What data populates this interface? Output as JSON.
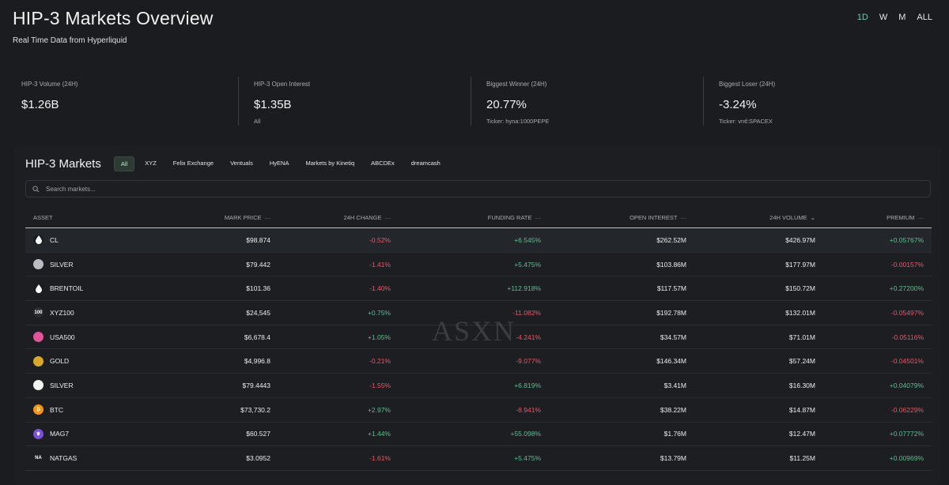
{
  "page": {
    "title": "HIP-3 Markets Overview",
    "subtitle": "Real Time Data from Hyperliquid"
  },
  "timeframes": [
    "1D",
    "W",
    "M",
    "ALL"
  ],
  "active_timeframe": "1D",
  "stats": [
    {
      "label": "HIP-3 Volume (24H)",
      "value": "$1.26B",
      "sub": ""
    },
    {
      "label": "HIP-3 Open Interest",
      "value": "$1.35B",
      "sub": "All"
    },
    {
      "label": "Biggest Winner (24H)",
      "value": "20.77%",
      "sub": "Ticker: hyna:1000PEPE"
    },
    {
      "label": "Biggest Loser (24H)",
      "value": "-3.24%",
      "sub": "Ticker: vntl:SPACEX"
    }
  ],
  "markets": {
    "title": "HIP-3 Markets",
    "filters": [
      "All",
      "XYZ",
      "Felix Exchange",
      "Ventuals",
      "HyENA",
      "Markets by Kinetiq",
      "ABCDEx",
      "dreamcash"
    ],
    "active_filter": "All",
    "search_placeholder": "Search markets...",
    "columns": [
      "ASSET",
      "MARK PRICE",
      "24H CHANGE",
      "FUNDING RATE",
      "OPEN INTEREST",
      "24H VOLUME",
      "PREMIUM"
    ],
    "rows": [
      {
        "icon": "droplet-icon",
        "icon_bg": "#1a1c20",
        "icon_fg": "#ffffff",
        "icon_text": "",
        "asset": "CL",
        "price": "$98.874",
        "change": "-0.52%",
        "change_dir": "neg",
        "funding": "+6.545%",
        "funding_dir": "pos",
        "oi": "$262.52M",
        "volume": "$426.97M",
        "premium": "+0.05767%",
        "premium_dir": "pos"
      },
      {
        "icon": "silver-coin-icon",
        "icon_bg": "#b9bcc2",
        "icon_fg": "#555",
        "icon_text": "",
        "asset": "SILVER",
        "price": "$79.442",
        "change": "-1.41%",
        "change_dir": "neg",
        "funding": "+5.475%",
        "funding_dir": "pos",
        "oi": "$103.86M",
        "volume": "$177.97M",
        "premium": "-0.00157%",
        "premium_dir": "neg"
      },
      {
        "icon": "droplet-icon",
        "icon_bg": "#1a1c20",
        "icon_fg": "#ffffff",
        "icon_text": "",
        "asset": "BRENTOIL",
        "price": "$101.36",
        "change": "-1.40%",
        "change_dir": "neg",
        "funding": "+112.918%",
        "funding_dir": "pos",
        "oi": "$117.57M",
        "volume": "$150.72M",
        "premium": "+0.27200%",
        "premium_dir": "pos"
      },
      {
        "icon": "xyz100-icon",
        "icon_bg": "#2a2c30",
        "icon_fg": "#ffffff",
        "icon_text": "100",
        "asset": "XYZ100",
        "price": "$24,545",
        "change": "+0.75%",
        "change_dir": "pos",
        "funding": "-11.082%",
        "funding_dir": "neg",
        "oi": "$192.78M",
        "volume": "$132.01M",
        "premium": "-0.05497%",
        "premium_dir": "neg"
      },
      {
        "icon": "usa500-icon",
        "icon_bg": "#e0559a",
        "icon_fg": "#ffffff",
        "icon_text": "",
        "asset": "USA500",
        "price": "$6,678.4",
        "change": "+1.05%",
        "change_dir": "pos",
        "funding": "-4.241%",
        "funding_dir": "neg",
        "oi": "$34.57M",
        "volume": "$71.01M",
        "premium": "-0.05116%",
        "premium_dir": "neg"
      },
      {
        "icon": "gold-coin-icon",
        "icon_bg": "#d9a92b",
        "icon_fg": "#5a4410",
        "icon_text": "",
        "asset": "GOLD",
        "price": "$4,996.8",
        "change": "-0.21%",
        "change_dir": "neg",
        "funding": "-9.077%",
        "funding_dir": "neg",
        "oi": "$146.34M",
        "volume": "$57.24M",
        "premium": "-0.04501%",
        "premium_dir": "neg"
      },
      {
        "icon": "silver-circle-icon",
        "icon_bg": "#f2f2f2",
        "icon_fg": "#f2f2f2",
        "icon_text": "",
        "asset": "SILVER",
        "price": "$79.4443",
        "change": "-1.55%",
        "change_dir": "neg",
        "funding": "+6.819%",
        "funding_dir": "pos",
        "oi": "$3.41M",
        "volume": "$16.30M",
        "premium": "+0.04079%",
        "premium_dir": "pos"
      },
      {
        "icon": "bitcoin-icon",
        "icon_bg": "#f2931a",
        "icon_fg": "#ffffff",
        "icon_text": "₿",
        "asset": "BTC",
        "price": "$73,730.2",
        "change": "+2.97%",
        "change_dir": "pos",
        "funding": "-8.941%",
        "funding_dir": "neg",
        "oi": "$38.22M",
        "volume": "$14.87M",
        "premium": "-0.06229%",
        "premium_dir": "neg"
      },
      {
        "icon": "mag7-icon",
        "icon_bg": "#7b4fd6",
        "icon_fg": "#ffffff",
        "icon_text": "♛",
        "asset": "MAG7",
        "price": "$60.527",
        "change": "+1.44%",
        "change_dir": "pos",
        "funding": "+55.098%",
        "funding_dir": "pos",
        "oi": "$1.76M",
        "volume": "$12.47M",
        "premium": "+0.07772%",
        "premium_dir": "pos"
      },
      {
        "icon": "natgas-icon",
        "icon_bg": "transparent",
        "icon_fg": "#ffffff",
        "icon_text": "NA",
        "asset": "NATGAS",
        "price": "$3.0952",
        "change": "-1.61%",
        "change_dir": "neg",
        "funding": "+5.475%",
        "funding_dir": "pos",
        "oi": "$13.79M",
        "volume": "$11.25M",
        "premium": "+0.00969%",
        "premium_dir": "pos"
      }
    ]
  },
  "watermark": "ASXN"
}
